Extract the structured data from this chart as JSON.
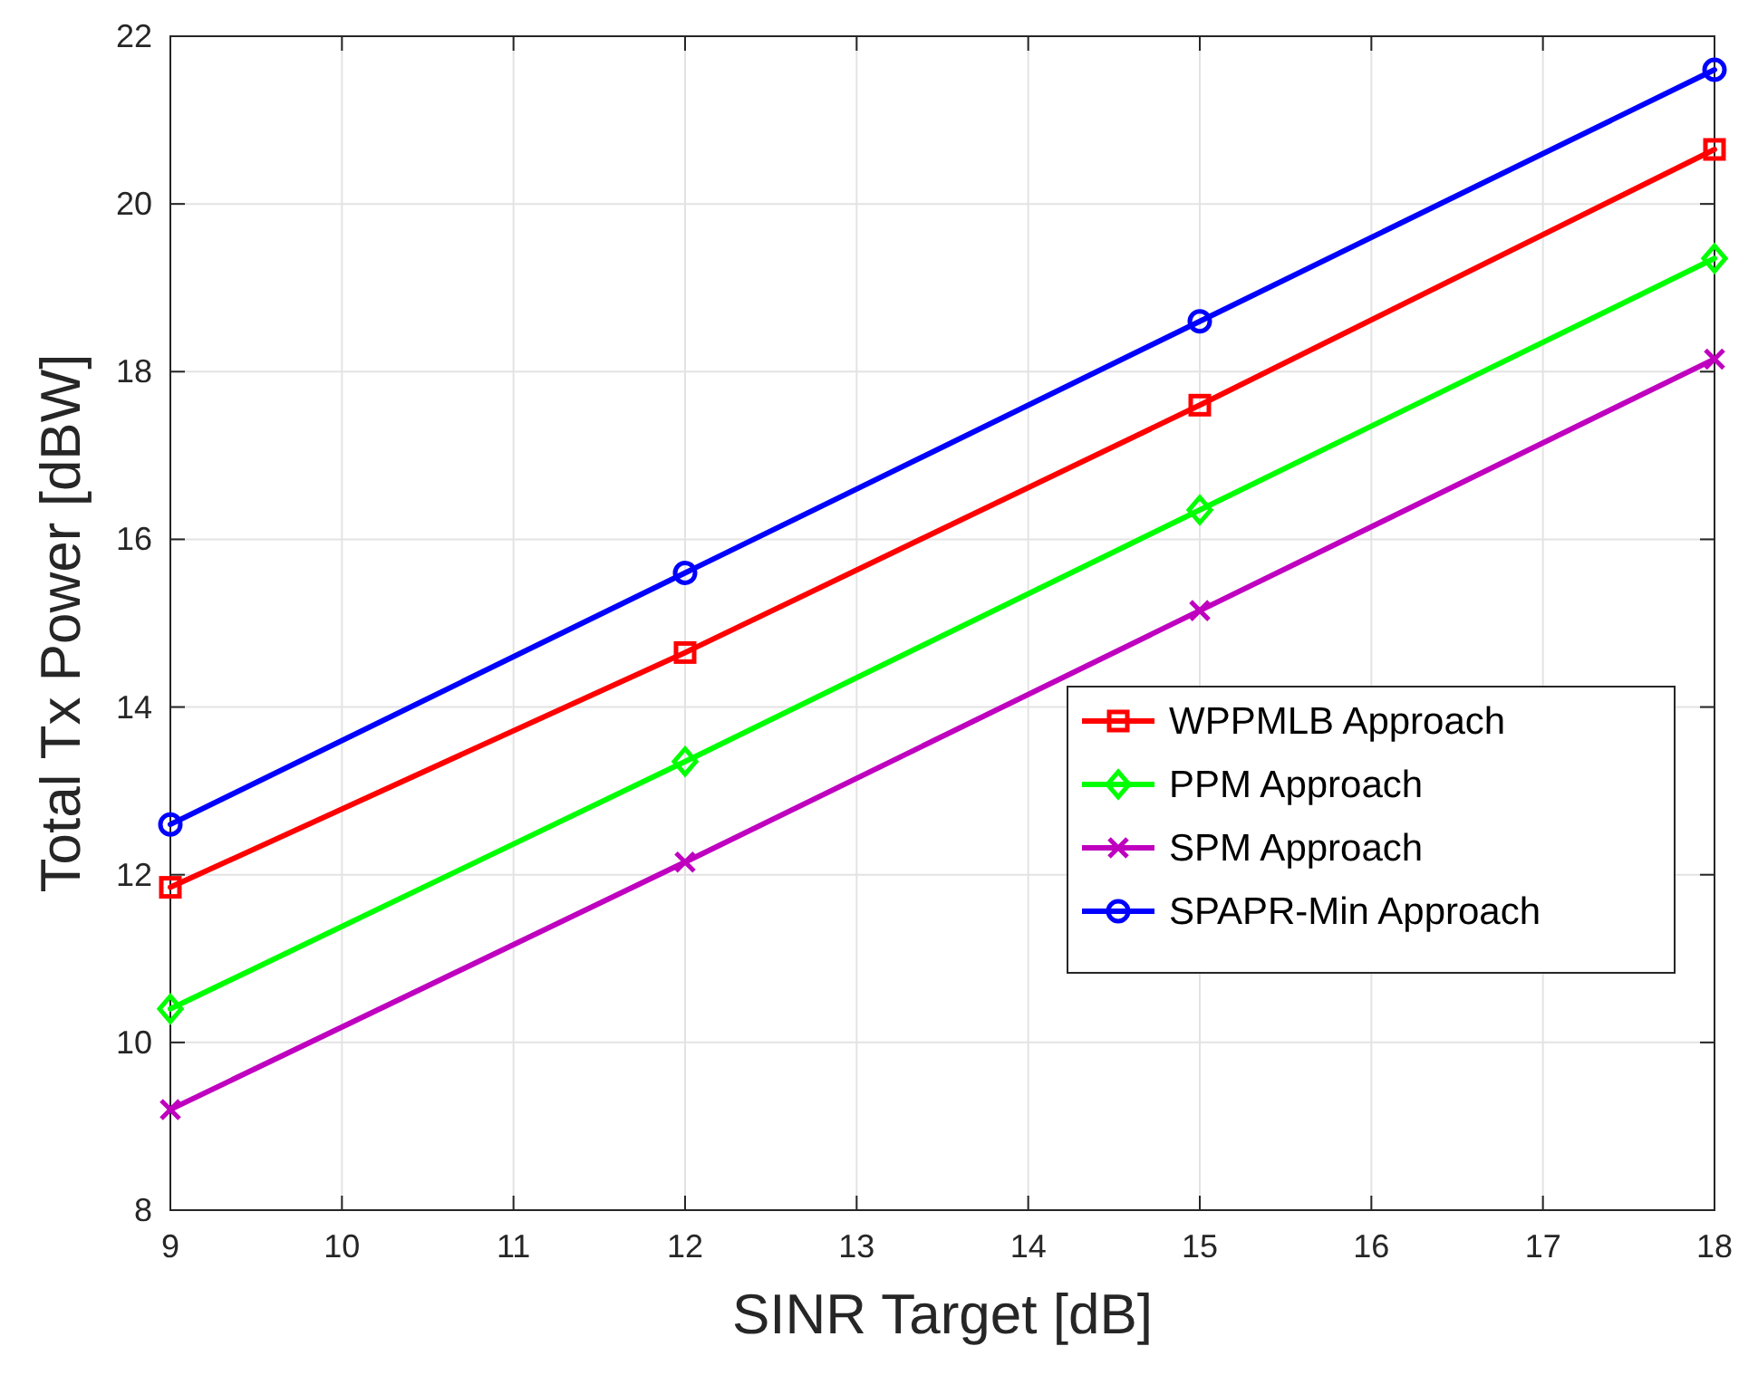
{
  "chart_data": {
    "type": "line",
    "xlabel": "SINR Target [dB]",
    "ylabel": "Total Tx Power [dBW]",
    "x": [
      9,
      12,
      15,
      18
    ],
    "series": [
      {
        "name": "WPPMLB Approach",
        "color": "#ff0000",
        "marker": "square",
        "values": [
          11.85,
          14.65,
          17.6,
          20.65
        ]
      },
      {
        "name": "PPM Approach",
        "color": "#00ff00",
        "marker": "diamond",
        "values": [
          10.4,
          13.35,
          16.35,
          19.35
        ]
      },
      {
        "name": "SPM Approach",
        "color": "#bf00bf",
        "marker": "cross",
        "values": [
          9.2,
          12.15,
          15.15,
          18.15
        ]
      },
      {
        "name": "SPAPR-Min Approach",
        "color": "#0000ff",
        "marker": "circle",
        "values": [
          12.6,
          15.6,
          18.6,
          21.6
        ]
      }
    ],
    "xlim": [
      9,
      18
    ],
    "xticks": [
      9,
      10,
      11,
      12,
      13,
      14,
      15,
      16,
      17,
      18
    ],
    "ylim": [
      8,
      22
    ],
    "yticks": [
      8,
      10,
      12,
      14,
      16,
      18,
      20,
      22
    ],
    "grid": true,
    "legend": "right",
    "line_style": "solid"
  }
}
